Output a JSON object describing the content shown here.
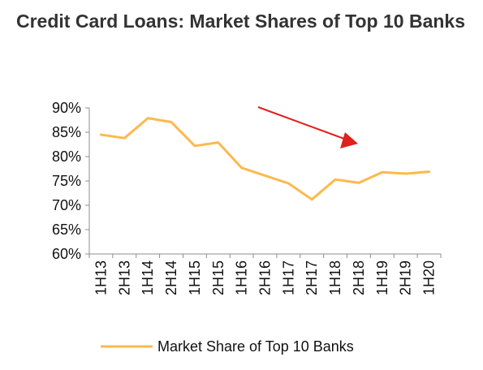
{
  "chart_data": {
    "type": "line",
    "title": "Credit Card Loans: Market Shares of Top 10 Banks",
    "categories": [
      "1H13",
      "2H13",
      "1H14",
      "2H14",
      "1H15",
      "2H15",
      "1H16",
      "2H16",
      "1H17",
      "2H17",
      "1H18",
      "2H18",
      "1H19",
      "2H19",
      "1H20"
    ],
    "series": [
      {
        "name": "Market Share of Top 10 Banks",
        "color": "#FDB94E",
        "values": [
          0.845,
          0.838,
          0.879,
          0.871,
          0.822,
          0.829,
          0.777,
          0.761,
          0.745,
          0.712,
          0.753,
          0.746,
          0.768,
          0.765,
          0.769
        ]
      }
    ],
    "ylim": [
      0.6,
      0.9
    ],
    "yticks": [
      0.6,
      0.65,
      0.7,
      0.75,
      0.8,
      0.85,
      0.9
    ],
    "ytick_labels": [
      "60%",
      "65%",
      "70%",
      "75%",
      "80%",
      "85%",
      "90%"
    ],
    "xlabel": "",
    "ylabel": "",
    "grid": false,
    "legend": "bottom",
    "annotations": [
      {
        "type": "arrow",
        "direction": "down-right",
        "color": "#E0201B",
        "meaning": "declining trend"
      }
    ]
  }
}
